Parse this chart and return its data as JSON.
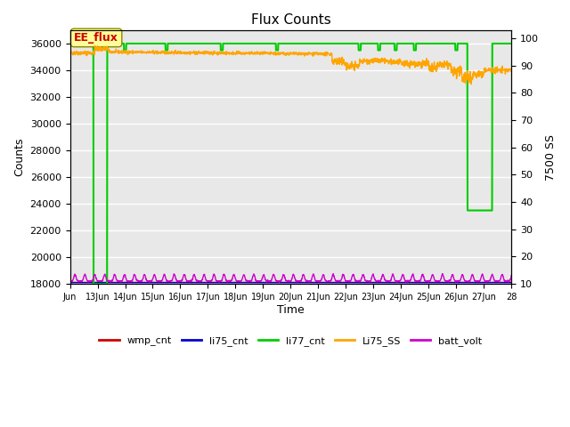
{
  "title": "Flux Counts",
  "xlabel": "Time",
  "ylabel_left": "Counts",
  "ylabel_right": "7500 SS",
  "xlim": [
    0,
    16
  ],
  "ylim_left": [
    18000,
    37000
  ],
  "ylim_right": [
    10,
    103
  ],
  "x_tick_positions": [
    0,
    1,
    2,
    3,
    4,
    5,
    6,
    7,
    8,
    9,
    10,
    11,
    12,
    13,
    14,
    15,
    16
  ],
  "x_tick_labels": [
    "Jun",
    "13Jun",
    "14Jun",
    "15Jun",
    "16Jun",
    "17Jun",
    "18Jun",
    "19Jun",
    "20Jun",
    "21Jun",
    "22Jun",
    "23Jun",
    "24Jun",
    "25Jun",
    "26Jun",
    "27Jun",
    "28"
  ],
  "yticks_left": [
    18000,
    20000,
    22000,
    24000,
    26000,
    28000,
    30000,
    32000,
    34000,
    36000
  ],
  "yticks_right": [
    10,
    20,
    30,
    40,
    50,
    60,
    70,
    80,
    90,
    100
  ],
  "background_color": "#e8e8e8",
  "grid_color": "#ffffff",
  "colors": {
    "wmp_cnt": "#cc0000",
    "li75_cnt": "#0000cc",
    "li77_cnt": "#00cc00",
    "Li75_SS": "#ffa500",
    "batt_volt": "#cc00cc"
  },
  "annotation_text": "EE_flux",
  "annotation_color": "#cc0000",
  "annotation_bg": "#ffff99",
  "annotation_edge": "#888800",
  "legend_labels": [
    "wmp_cnt",
    "li75_cnt",
    "li77_cnt",
    "Li75_SS",
    "batt_volt"
  ]
}
